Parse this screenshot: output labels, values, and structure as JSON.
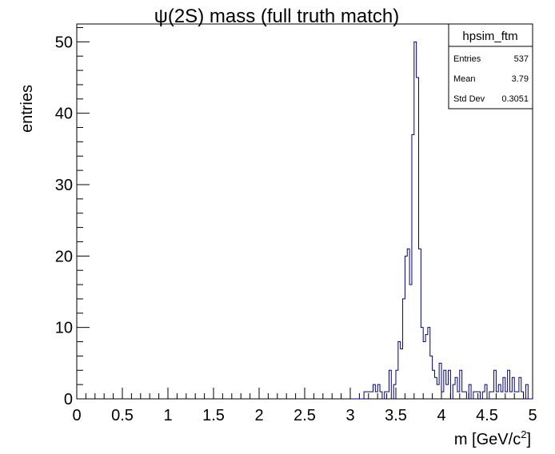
{
  "chart_data": {
    "type": "histogram",
    "title_prefix": "ψ",
    "title_rest": "(2S) mass (full truth match)",
    "xlabel_main": "m [GeV/c",
    "xlabel_sup": "2",
    "xlabel_close": "]",
    "ylabel": "entries",
    "xlim": [
      0,
      5
    ],
    "ylim": [
      0,
      52.5
    ],
    "x_ticks": [
      {
        "value": 0,
        "label": "0"
      },
      {
        "value": 0.5,
        "label": "0.5"
      },
      {
        "value": 1,
        "label": "1"
      },
      {
        "value": 1.5,
        "label": "1.5"
      },
      {
        "value": 2,
        "label": "2"
      },
      {
        "value": 2.5,
        "label": "2.5"
      },
      {
        "value": 3,
        "label": "3"
      },
      {
        "value": 3.5,
        "label": "3.5"
      },
      {
        "value": 4,
        "label": "4"
      },
      {
        "value": 4.5,
        "label": "4.5"
      },
      {
        "value": 5,
        "label": "5"
      }
    ],
    "y_ticks": [
      {
        "value": 0,
        "label": "0"
      },
      {
        "value": 10,
        "label": "10"
      },
      {
        "value": 20,
        "label": "20"
      },
      {
        "value": 30,
        "label": "30"
      },
      {
        "value": 40,
        "label": "40"
      },
      {
        "value": 50,
        "label": "50"
      }
    ],
    "bin_width": 0.025,
    "bins_start": 3.0,
    "counts": [
      0,
      0,
      0,
      0,
      0,
      0,
      1,
      1,
      1,
      1,
      2,
      1,
      2,
      1,
      0,
      1,
      1,
      4,
      0,
      2,
      4,
      8,
      7,
      14,
      20,
      21,
      16,
      37,
      50,
      45,
      21,
      10,
      8,
      9,
      10,
      6,
      4,
      3,
      2,
      5,
      1,
      4,
      2,
      4,
      0,
      2,
      3,
      1,
      4,
      1,
      1,
      0,
      2,
      0,
      1,
      1,
      1,
      0,
      1,
      2,
      0,
      1,
      1,
      4,
      1,
      2,
      1,
      3,
      1,
      4,
      1,
      3,
      1,
      1,
      3,
      1,
      0,
      2,
      0,
      0
    ],
    "line_color": "#000080",
    "stats_box": {
      "name": "hpsim_ftm",
      "rows": [
        {
          "label": "Entries",
          "value": "537"
        },
        {
          "label": "Mean",
          "value": "3.79"
        },
        {
          "label": "Std Dev",
          "value": "0.3051"
        }
      ]
    }
  }
}
